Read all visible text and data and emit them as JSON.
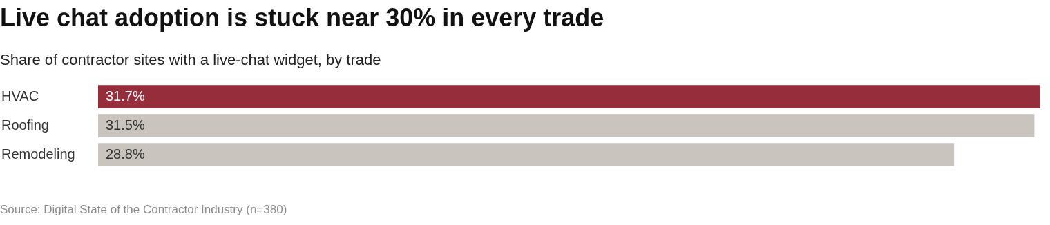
{
  "chart_data": {
    "type": "bar",
    "orientation": "horizontal",
    "title": "Live chat adoption is stuck near 30% in every trade",
    "subtitle": "Share of contractor sites with a live-chat widget, by trade",
    "categories": [
      "HVAC",
      "Roofing",
      "Remodeling"
    ],
    "values": [
      31.7,
      31.5,
      28.8
    ],
    "colors": [
      "#962d3a",
      "#c9c5be",
      "#c9c5be"
    ],
    "value_labels": [
      "31.7%",
      "31.5%",
      "28.8%"
    ],
    "xlim": [
      0,
      31.7
    ],
    "tick_labels": "y",
    "annotations": [
      "Source: Digital State of the Contractor Industry (n=380)"
    ]
  }
}
